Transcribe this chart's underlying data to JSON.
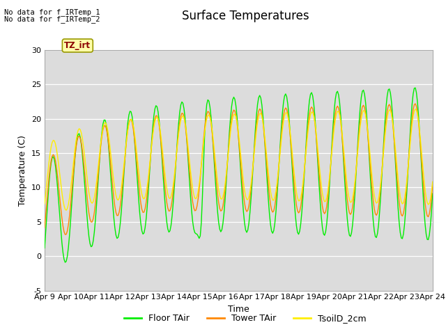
{
  "title": "Surface Temperatures",
  "xlabel": "Time",
  "ylabel": "Temperature (C)",
  "ylim": [
    -5,
    30
  ],
  "xlim": [
    0,
    15
  ],
  "xtick_labels": [
    "Apr 9",
    "Apr 10",
    "Apr 11",
    "Apr 12",
    "Apr 13",
    "Apr 14",
    "Apr 15",
    "Apr 16",
    "Apr 17",
    "Apr 18",
    "Apr 19",
    "Apr 20",
    "Apr 21",
    "Apr 22",
    "Apr 23",
    "Apr 24"
  ],
  "ytick_vals": [
    -5,
    0,
    5,
    10,
    15,
    20,
    25,
    30
  ],
  "annotation1": "No data for f_IRTemp_1",
  "annotation2": "No data for f_IRTemp_2",
  "box_label": "TZ_irt",
  "legend_entries": [
    "Floor TAir",
    "Tower TAir",
    "TsoilD_2cm"
  ],
  "line_colors": [
    "#00ee00",
    "#ff8800",
    "#ffee00"
  ],
  "bg_color": "#dcdcdc",
  "outer_bg": "#ffffff",
  "title_fontsize": 12,
  "axis_fontsize": 9,
  "tick_fontsize": 8
}
